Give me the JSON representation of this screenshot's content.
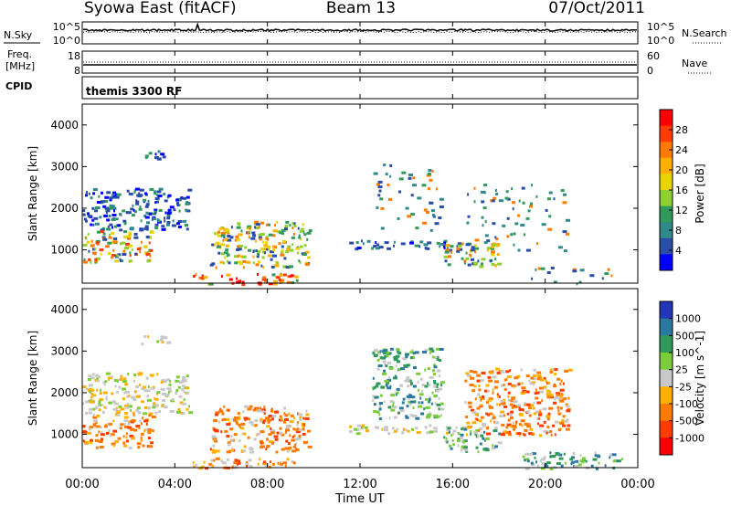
{
  "header": {
    "station": "Syowa East (fitACF)",
    "beam": "Beam 13",
    "date": "07/Oct/2011"
  },
  "top_panels": {
    "nsky_label": "N.Sky",
    "nsky_tick_top": "10^5",
    "nsky_tick_bottom": "10^0",
    "nsearch_label": "N.Search",
    "nsearch_tick_top": "10^5",
    "nsearch_tick_bottom": "10^0",
    "freq_label_line1": "Freq.",
    "freq_label_line2": "[MHz]",
    "freq_tick_top": "18",
    "freq_tick_bottom": "8",
    "nave_label": "Nave",
    "nave_tick_top": "60",
    "nave_tick_bottom": "0",
    "cpid_label": "CPID",
    "cpid_value": "themis 3300 RF"
  },
  "x_axis": {
    "label": "Time UT",
    "ticks": [
      "00:00",
      "04:00",
      "08:00",
      "12:00",
      "16:00",
      "20:00",
      "00:00"
    ],
    "tick_hours": [
      0,
      4,
      8,
      12,
      16,
      20,
      24
    ]
  },
  "chart_data": [
    {
      "type": "heatmap",
      "panel": "power",
      "ylabel": "Slant Range [km]",
      "yticks": [
        1000,
        2000,
        3000,
        4000
      ],
      "ylim": [
        200,
        4500
      ],
      "xlim": [
        0,
        24
      ],
      "colorbar_label": "Power [dB]",
      "colorbar_ticks": [
        "28",
        "24",
        "20",
        "16",
        "12",
        "8",
        "4"
      ],
      "colorbar_colors": [
        "#ff0000",
        "#ff3c00",
        "#ff7a00",
        "#ffb000",
        "#e8d400",
        "#8ed030",
        "#2f9a5a",
        "#2f8a8a",
        "#2a4da8",
        "#0000ff"
      ],
      "regions": [
        {
          "t": [
            0.0,
            4.6
          ],
          "r": [
            1500,
            2500
          ],
          "level": "low"
        },
        {
          "t": [
            0.0,
            3.0
          ],
          "r": [
            700,
            1500
          ],
          "level": "mixed"
        },
        {
          "t": [
            2.5,
            3.7
          ],
          "r": [
            3200,
            3400
          ],
          "level": "low"
        },
        {
          "t": [
            4.6,
            9.3
          ],
          "r": [
            200,
            450
          ],
          "level": "high"
        },
        {
          "t": [
            5.5,
            9.8
          ],
          "r": [
            600,
            1700
          ],
          "level": "mid"
        },
        {
          "t": [
            11.5,
            15.8
          ],
          "r": [
            1050,
            1250
          ],
          "level": "low"
        },
        {
          "t": [
            12.5,
            15.5
          ],
          "r": [
            1400,
            3100
          ],
          "level": "sparse"
        },
        {
          "t": [
            15.6,
            18.0
          ],
          "r": [
            600,
            1200
          ],
          "level": "mid"
        },
        {
          "t": [
            16.5,
            21.0
          ],
          "r": [
            1000,
            2600
          ],
          "level": "sparse"
        },
        {
          "t": [
            19.0,
            23.3
          ],
          "r": [
            200,
            600
          ],
          "level": "sparse"
        }
      ]
    },
    {
      "type": "heatmap",
      "panel": "velocity",
      "ylabel": "Slant Range [km]",
      "yticks": [
        1000,
        2000,
        3000,
        4000
      ],
      "ylim": [
        200,
        4500
      ],
      "xlim": [
        0,
        24
      ],
      "colorbar_label": "Velocity [m s^-1]",
      "colorbar_ticks": [
        "1000",
        "500",
        "100",
        "25",
        "-25",
        "-100",
        "-500",
        "-1000"
      ],
      "colorbar_colors": [
        "#2236b8",
        "#2a7aa0",
        "#2f9a5a",
        "#7ccd3c",
        "#c8c8c8",
        "#ffb000",
        "#ff7a00",
        "#ff3c00",
        "#ff0000"
      ],
      "regions": [
        {
          "t": [
            0.0,
            4.6
          ],
          "r": [
            1500,
            2500
          ],
          "level": "gray"
        },
        {
          "t": [
            0.0,
            3.0
          ],
          "r": [
            700,
            1500
          ],
          "level": "orange"
        },
        {
          "t": [
            2.5,
            3.7
          ],
          "r": [
            3200,
            3400
          ],
          "level": "gray"
        },
        {
          "t": [
            4.6,
            9.3
          ],
          "r": [
            200,
            450
          ],
          "level": "orange"
        },
        {
          "t": [
            5.5,
            9.8
          ],
          "r": [
            600,
            1700
          ],
          "level": "orange"
        },
        {
          "t": [
            11.5,
            15.8
          ],
          "r": [
            1050,
            1250
          ],
          "level": "gray"
        },
        {
          "t": [
            12.5,
            15.5
          ],
          "r": [
            1400,
            3100
          ],
          "level": "green"
        },
        {
          "t": [
            15.6,
            18.0
          ],
          "r": [
            600,
            1200
          ],
          "level": "green"
        },
        {
          "t": [
            16.5,
            21.0
          ],
          "r": [
            1000,
            2600
          ],
          "level": "orange"
        },
        {
          "t": [
            19.0,
            23.3
          ],
          "r": [
            200,
            600
          ],
          "level": "green"
        }
      ]
    }
  ]
}
